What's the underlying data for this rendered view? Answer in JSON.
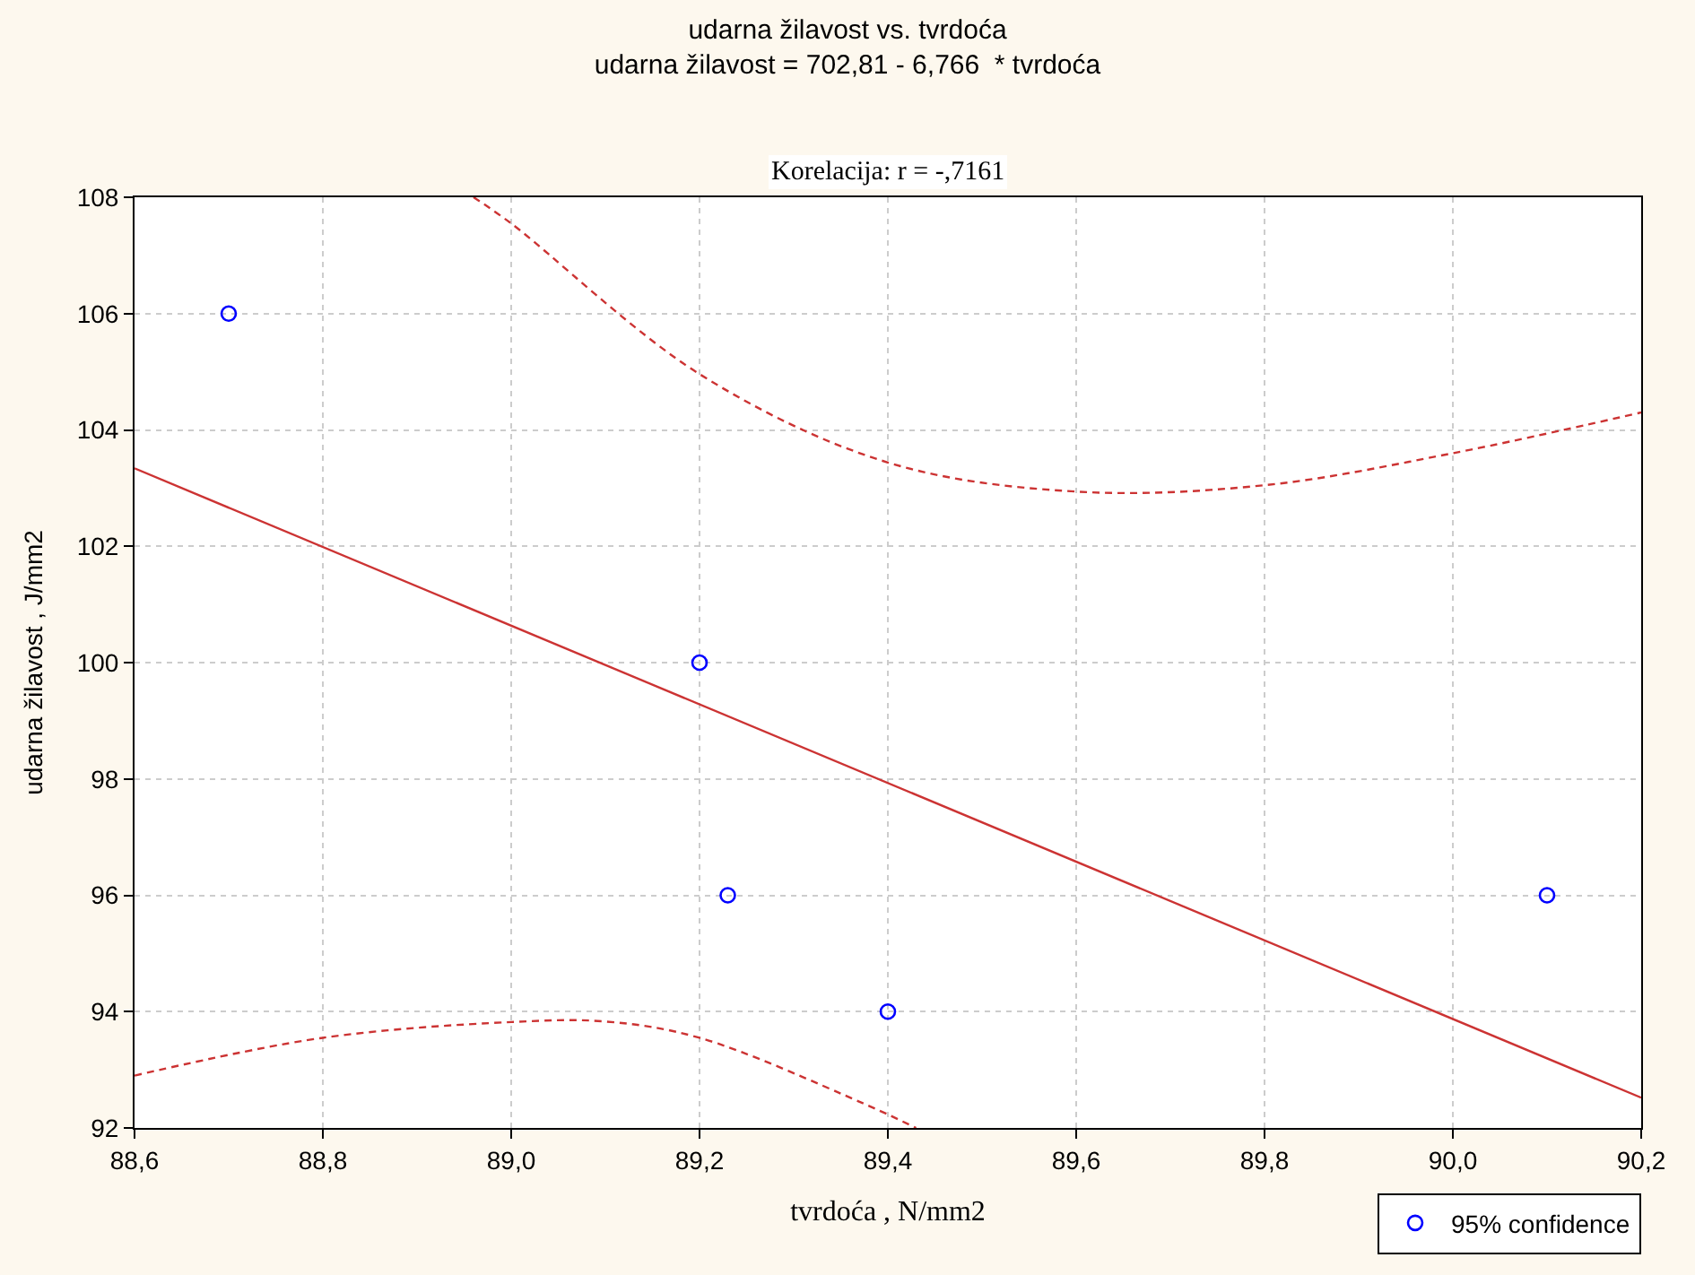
{
  "chart_data": {
    "type": "scatter",
    "title": "udarna žilavost vs. tvrdoća",
    "subtitle": "udarna žilavost = 702,81 - 6,766  * tvrdoća",
    "annotations": [
      "Korelacija: r = -,7161"
    ],
    "xlabel": "tvrdoća , N/mm2",
    "ylabel": "udarna žilavost , J/mm2",
    "xlim": [
      88.6,
      90.2
    ],
    "ylim": [
      92,
      108
    ],
    "xticks": [
      {
        "value": 88.6,
        "label": "88,6"
      },
      {
        "value": 88.8,
        "label": "88,8"
      },
      {
        "value": 89.0,
        "label": "89,0"
      },
      {
        "value": 89.2,
        "label": "89,2"
      },
      {
        "value": 89.4,
        "label": "89,4"
      },
      {
        "value": 89.6,
        "label": "89,6"
      },
      {
        "value": 89.8,
        "label": "89,8"
      },
      {
        "value": 90.0,
        "label": "90,0"
      },
      {
        "value": 90.2,
        "label": "90,2"
      }
    ],
    "yticks": [
      92,
      94,
      96,
      98,
      100,
      102,
      104,
      106,
      108
    ],
    "grid": true,
    "legend": "bottom right",
    "series": [
      {
        "name": "95% confidence",
        "marker": "circle",
        "color": "#0000ff",
        "x": [
          88.7,
          89.2,
          89.23,
          89.4,
          90.1
        ],
        "values": [
          106,
          100,
          96,
          94,
          96
        ]
      },
      {
        "type": "line",
        "color": "#cc3333",
        "line_style": "solid",
        "x": [
          88.6,
          90.2
        ],
        "values": [
          103.34,
          92.52
        ]
      },
      {
        "type": "line",
        "color": "#cc3333",
        "line_style": "dashed",
        "x": [
          88.96,
          89.0,
          89.2,
          89.4,
          89.6,
          89.8,
          90.0,
          90.2
        ],
        "values": [
          108,
          107.55,
          104.96,
          103.44,
          102.94,
          103.05,
          103.6,
          104.3
        ]
      },
      {
        "type": "line",
        "color": "#cc3333",
        "line_style": "dashed",
        "x": [
          88.6,
          88.8,
          89.0,
          89.1,
          89.2,
          89.37,
          89.43
        ],
        "values": [
          92.9,
          93.55,
          93.82,
          93.83,
          93.55,
          92.45,
          92.0
        ]
      }
    ]
  }
}
